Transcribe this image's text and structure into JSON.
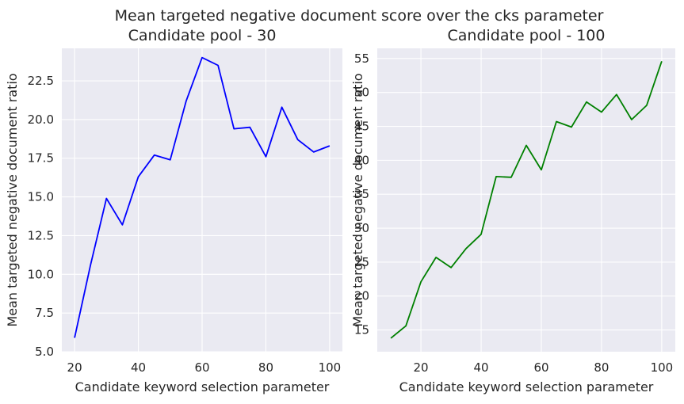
{
  "figure": {
    "title": "Mean targeted negative document score over the cks parameter",
    "background": "#ffffff",
    "axes_facecolor": "#eaeaf2",
    "grid_color": "#ffffff"
  },
  "chart_data": [
    {
      "type": "line",
      "title": "Candidate pool - 30",
      "xlabel": "Candidate keyword selection parameter",
      "ylabel": "Mean targeted negative document ratio",
      "xlim": [
        16,
        104
      ],
      "ylim": [
        5.0,
        24.6
      ],
      "xticks": [
        20,
        40,
        60,
        80,
        100
      ],
      "yticks": [
        5.0,
        7.5,
        10.0,
        12.5,
        15.0,
        17.5,
        20.0,
        22.5
      ],
      "ytick_labels": [
        "5.0",
        "7.5",
        "10.0",
        "12.5",
        "15.0",
        "17.5",
        "20.0",
        "22.5"
      ],
      "grid": true,
      "series": [
        {
          "color": "#0000ff",
          "x": [
            20,
            25,
            30,
            35,
            40,
            45,
            50,
            55,
            60,
            65,
            70,
            75,
            80,
            85,
            90,
            95,
            100
          ],
          "y": [
            5.9,
            10.6,
            14.9,
            13.2,
            16.3,
            17.7,
            17.4,
            21.2,
            24.0,
            23.5,
            19.4,
            19.5,
            17.6,
            20.8,
            18.7,
            17.9,
            18.3
          ]
        }
      ]
    },
    {
      "type": "line",
      "title": "Candidate pool - 100",
      "xlabel": "Candidate keyword selection parameter",
      "ylabel": "Mean targeted negative document ratio",
      "xlim": [
        5.5,
        104.5
      ],
      "ylim": [
        11.8,
        56.5
      ],
      "xticks": [
        20,
        40,
        60,
        80,
        100
      ],
      "yticks": [
        15,
        20,
        25,
        30,
        35,
        40,
        45,
        50,
        55
      ],
      "ytick_labels": [
        "15",
        "20",
        "25",
        "30",
        "35",
        "40",
        "45",
        "50",
        "55"
      ],
      "grid": true,
      "series": [
        {
          "color": "#008000",
          "x": [
            10,
            15,
            20,
            25,
            30,
            35,
            40,
            45,
            50,
            55,
            60,
            65,
            70,
            75,
            80,
            85,
            90,
            95,
            100
          ],
          "y": [
            13.8,
            15.6,
            22.1,
            25.7,
            24.2,
            27.0,
            29.1,
            37.6,
            37.5,
            42.2,
            38.6,
            45.7,
            44.9,
            48.6,
            47.1,
            49.7,
            46.0,
            48.1,
            54.6
          ]
        }
      ]
    }
  ]
}
